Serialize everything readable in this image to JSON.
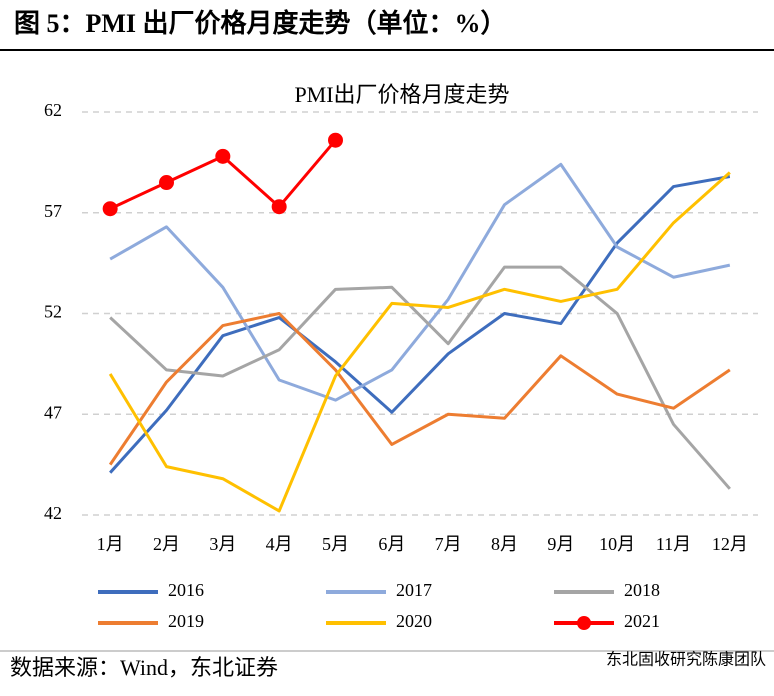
{
  "header": {
    "title": "图 5：PMI 出厂价格月度走势（单位：%）"
  },
  "chart_data": {
    "type": "line",
    "title": "PMI出厂价格月度走势",
    "categories": [
      "1月",
      "2月",
      "3月",
      "4月",
      "5月",
      "6月",
      "7月",
      "8月",
      "9月",
      "10月",
      "11月",
      "12月"
    ],
    "ylim": [
      42,
      62
    ],
    "yticks": [
      42,
      47,
      52,
      57,
      62
    ],
    "grid": true,
    "series": [
      {
        "name": "2016",
        "color": "#3e6dbd",
        "values": [
          44.1,
          47.2,
          50.9,
          51.8,
          49.6,
          47.1,
          50.0,
          52.0,
          51.5,
          55.5,
          58.3,
          58.8
        ]
      },
      {
        "name": "2017",
        "color": "#8eaadc",
        "values": [
          54.7,
          56.3,
          53.3,
          48.7,
          47.7,
          49.2,
          52.7,
          57.4,
          59.4,
          55.3,
          53.8,
          54.4
        ]
      },
      {
        "name": "2018",
        "color": "#a5a5a5",
        "values": [
          51.8,
          49.2,
          48.9,
          50.2,
          53.2,
          53.3,
          50.5,
          54.3,
          54.3,
          52.0,
          46.5,
          43.3
        ]
      },
      {
        "name": "2019",
        "color": "#ed7d31",
        "values": [
          44.5,
          48.6,
          51.4,
          52.0,
          49.2,
          45.5,
          47.0,
          46.8,
          49.9,
          48.0,
          47.3,
          49.2
        ]
      },
      {
        "name": "2020",
        "color": "#ffc000",
        "values": [
          49.0,
          44.4,
          43.8,
          42.2,
          48.9,
          52.5,
          52.3,
          53.2,
          52.6,
          53.2,
          56.5,
          59.0
        ]
      },
      {
        "name": "2021",
        "color": "#ff0000",
        "markers": true,
        "values": [
          57.2,
          58.5,
          59.8,
          57.3,
          60.6,
          null,
          null,
          null,
          null,
          null,
          null,
          null
        ]
      }
    ]
  },
  "footer": {
    "source": "数据来源：Wind，东北证券",
    "watermark": "东北固收研究陈康团队"
  }
}
